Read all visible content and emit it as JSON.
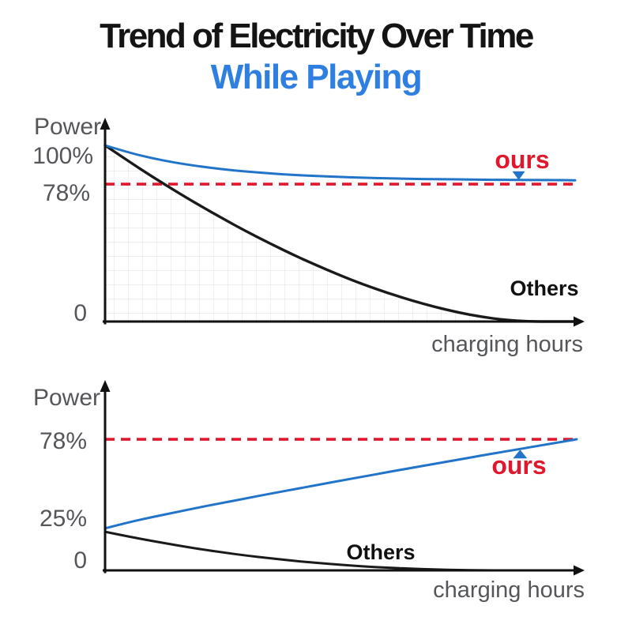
{
  "title": {
    "line1": "Trend of Electricity Over Time",
    "line2": "While Playing"
  },
  "colors": {
    "title_black": "#141414",
    "accent_blue": "#2e7fe0",
    "label_gray": "#54565a",
    "line_blue": "#2274c9",
    "line_red": "#e0182d",
    "line_black": "#1a1a1a",
    "grid_line": "#e9e9e9"
  },
  "chart_data": [
    {
      "type": "line",
      "name": "power-while-playing",
      "ylabel": "Power",
      "xlabel": "charging hours",
      "yticks": [
        {
          "label": "100%",
          "value": 100
        },
        {
          "label": "78%",
          "value": 78
        },
        {
          "label": "0",
          "value": 0
        }
      ],
      "xlim": [
        0,
        10
      ],
      "ylim": [
        0,
        112
      ],
      "x_units": "schematic (no x tick labels shown)",
      "grid": "graph-paper fill under Others curve only",
      "legend_position": "inline annotations",
      "threshold": {
        "value": 78,
        "style": "dashed"
      },
      "x": [
        0,
        0.5,
        1,
        1.5,
        2,
        2.5,
        3,
        3.5,
        4,
        4.5,
        5,
        5.5,
        6,
        6.5,
        7,
        7.5,
        8,
        8.5,
        9,
        9.5,
        10
      ],
      "series": [
        {
          "name": "ours",
          "color_key": "line_blue",
          "marker": "triangle-down",
          "marker_x": 8.8,
          "values": [
            100,
            95.9,
            92.7,
            90.1,
            88.1,
            86.4,
            85.1,
            84.1,
            83.2,
            82.6,
            82.1,
            81.6,
            81.3,
            81.0,
            80.8,
            80.7,
            80.5,
            80.4,
            80.3,
            80.3,
            80.2
          ]
        },
        {
          "name": "Others",
          "color_key": "line_black",
          "area_fill": "graph-paper",
          "values": [
            100,
            91.0,
            82.3,
            74.0,
            66.1,
            58.5,
            51.2,
            44.4,
            37.9,
            31.9,
            26.2,
            21.0,
            16.3,
            12.1,
            8.4,
            5.2,
            2.7,
            0.9,
            0,
            0,
            0
          ]
        }
      ]
    },
    {
      "type": "line",
      "name": "power-while-charging",
      "ylabel": "Power",
      "xlabel": "charging hours",
      "yticks": [
        {
          "label": "78%",
          "value": 78
        },
        {
          "label": "25%",
          "value": 25
        },
        {
          "label": "0",
          "value": 0
        }
      ],
      "xlim": [
        0,
        10
      ],
      "ylim": [
        0,
        112
      ],
      "x_units": "schematic (no x tick labels shown)",
      "grid": "off",
      "legend_position": "inline annotations",
      "threshold": {
        "value": 78,
        "style": "dashed"
      },
      "x": [
        0,
        0.5,
        1,
        1.5,
        2,
        2.5,
        3,
        3.5,
        4,
        4.5,
        5,
        5.5,
        6,
        6.5,
        7,
        7.5,
        8,
        8.5,
        9,
        9.5,
        10
      ],
      "series": [
        {
          "name": "ours",
          "color_key": "line_blue",
          "marker": "triangle-up",
          "marker_x": 8.8,
          "values": [
            25,
            28.6,
            31.7,
            34.6,
            37.5,
            40.2,
            42.9,
            45.6,
            48.2,
            50.8,
            53.4,
            55.9,
            58.5,
            61.0,
            63.4,
            65.9,
            68.4,
            70.8,
            73.2,
            75.6,
            78
          ]
        },
        {
          "name": "Others",
          "color_key": "line_black",
          "values": [
            23,
            20.1,
            17.5,
            15.0,
            12.7,
            10.7,
            8.8,
            7.2,
            5.7,
            4.4,
            3.3,
            2.3,
            1.6,
            1.0,
            0.5,
            0.2,
            0,
            0,
            0,
            0,
            0
          ]
        }
      ]
    }
  ]
}
